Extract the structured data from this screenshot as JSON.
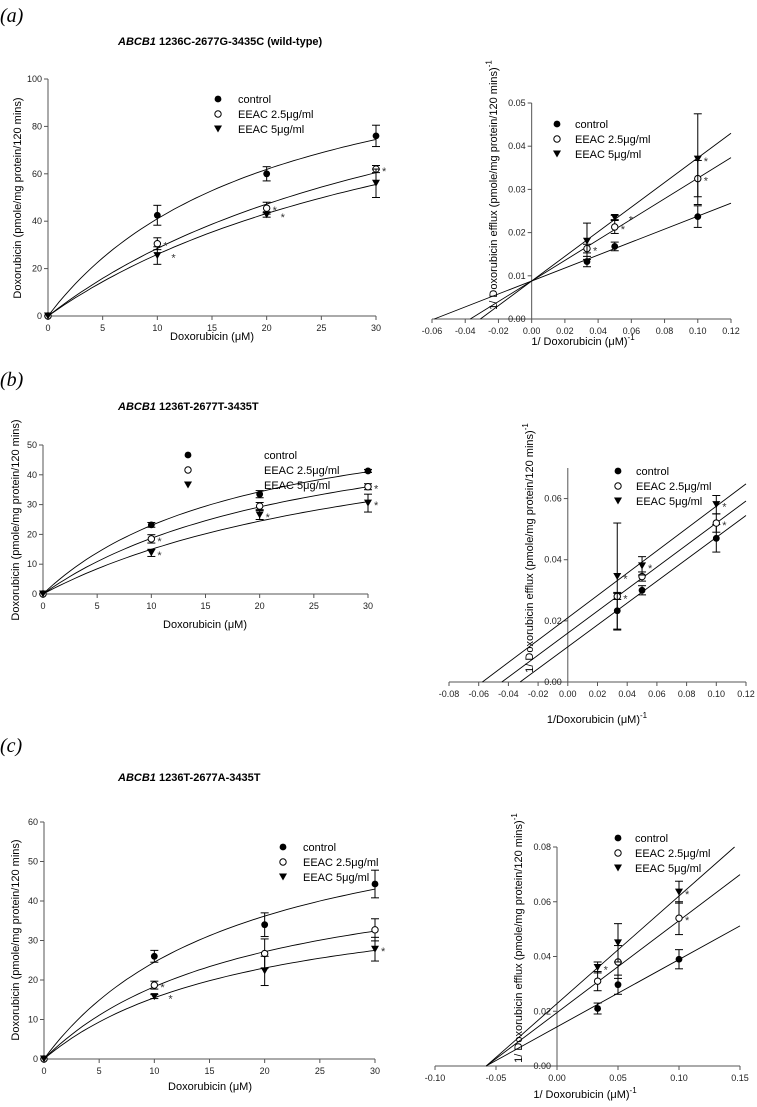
{
  "series_names": [
    "control",
    "EEAC 2.5μg/ml",
    "EEAC 5μg/ml"
  ],
  "marker_styles": [
    "filled-circle",
    "open-circle",
    "filled-triangle-down"
  ],
  "colors": {
    "ink": "#000000",
    "axis": "#555555"
  },
  "chart_data": [
    {
      "id": "a-left",
      "panel_label": "(a)",
      "title_gene": "ABCB1",
      "title_rest": " 1236C-2677G-3435C (wild-type)",
      "type": "scatter",
      "fit": "michaelis-menten",
      "xlabel": "Doxorubicin (μM)",
      "xlabel_sup": "",
      "ylabel": "Doxorubicin (pmole/mg protein/120 mins)",
      "ylabel_sup": "",
      "xlim": [
        0,
        30
      ],
      "ylim": [
        0,
        100
      ],
      "xticks": [
        "0",
        "5",
        "10",
        "15",
        "20",
        "25",
        "30"
      ],
      "yticks": [
        "0",
        "20",
        "40",
        "60",
        "80",
        "100"
      ],
      "series": [
        {
          "name": "control",
          "points": [
            [
              0,
              0,
              0,
              false
            ],
            [
              10,
              42.5,
              4.2,
              false
            ],
            [
              20,
              60,
              3,
              false
            ],
            [
              30,
              76,
              4.5,
              false
            ]
          ],
          "fit_params": {
            "Vmax": 125.9,
            "Km": 20.7
          }
        },
        {
          "name": "EEAC 2.5μg/ml",
          "points": [
            [
              0,
              0,
              0,
              false
            ],
            [
              10,
              30.5,
              2.5,
              true
            ],
            [
              20,
              45.5,
              2.5,
              true
            ],
            [
              30,
              62,
              1.5,
              true
            ]
          ],
          "fit_params": {
            "Vmax": 137.9,
            "Km": 38.4
          }
        },
        {
          "name": "EEAC 5μg/ml",
          "points": [
            [
              0,
              0,
              0,
              false
            ],
            [
              10,
              25.5,
              3.7,
              true
            ],
            [
              20,
              42.7,
              1,
              true
            ],
            [
              30,
              56,
              6,
              false
            ]
          ],
          "fit_params": {
            "Vmax": 128.2,
            "Km": 39.3
          }
        }
      ]
    },
    {
      "id": "a-right",
      "type": "scatter",
      "fit": "linear",
      "xlabel": "1/ Doxorubicin (μM)",
      "xlabel_sup": "-1",
      "ylabel": "1/ Doxorubicin efflux (pmole/mg protein/120 mins)",
      "ylabel_sup": "-1",
      "xlim": [
        -0.06,
        0.12
      ],
      "ylim": [
        0,
        0.05
      ],
      "xticks": [
        "-0.06",
        "-0.04",
        "-0.02",
        "0.00",
        "0.02",
        "0.04",
        "0.06",
        "0.08",
        "0.10",
        "0.12"
      ],
      "yticks": [
        "0.00",
        "0.01",
        "0.02",
        "0.03",
        "0.04",
        "0.05"
      ],
      "series": [
        {
          "name": "control",
          "points": [
            [
              0.0333,
              0.0133,
              0.0012,
              false
            ],
            [
              0.05,
              0.0168,
              0.001,
              false
            ],
            [
              0.1,
              0.0237,
              0.0025,
              false
            ]
          ],
          "fit_params": {
            "slope": 0.15,
            "intercept": 0.0088
          }
        },
        {
          "name": "EEAC 2.5μg/ml",
          "points": [
            [
              0.0333,
              0.0163,
              0.001,
              true
            ],
            [
              0.05,
              0.0213,
              0.0015,
              true
            ],
            [
              0.1,
              0.0325,
              0.0042,
              true
            ]
          ],
          "fit_params": {
            "slope": 0.238,
            "intercept": 0.0088
          }
        },
        {
          "name": "EEAC 5μg/ml",
          "points": [
            [
              0.0333,
              0.018,
              0.0042,
              false
            ],
            [
              0.05,
              0.0235,
              0.0005,
              true
            ],
            [
              0.1,
              0.037,
              0.0105,
              true
            ]
          ],
          "fit_params": {
            "slope": 0.285,
            "intercept": 0.0088
          }
        }
      ]
    },
    {
      "id": "b-left",
      "panel_label": "(b)",
      "title_gene": "ABCB1",
      "title_rest": " 1236T-2677T-3435T",
      "type": "scatter",
      "fit": "michaelis-menten",
      "xlabel": "Doxorubicin (μM)",
      "xlabel_sup": "",
      "ylabel": "Doxorubicin (pmole/mg protein/120 mins)",
      "ylabel_sup": "",
      "xlim": [
        0,
        30
      ],
      "ylim": [
        0,
        50
      ],
      "xticks": [
        "0",
        "5",
        "10",
        "15",
        "20",
        "25",
        "30"
      ],
      "yticks": [
        "0",
        "10",
        "20",
        "30",
        "40",
        "50"
      ],
      "series": [
        {
          "name": "control",
          "points": [
            [
              0,
              0,
              0,
              false
            ],
            [
              10,
              23.2,
              0.8,
              false
            ],
            [
              20,
              33.5,
              1.2,
              false
            ],
            [
              30,
              41.3,
              0.5,
              false
            ]
          ],
          "fit_params": {
            "Vmax": 67.4,
            "Km": 19.3
          }
        },
        {
          "name": "EEAC 2.5μg/ml",
          "points": [
            [
              0,
              0,
              0,
              false
            ],
            [
              10,
              18.5,
              1.4,
              true
            ],
            [
              20,
              29.5,
              1.2,
              false
            ],
            [
              30,
              36,
              1,
              true
            ]
          ],
          "fit_params": {
            "Vmax": 66.9,
            "Km": 25.8
          }
        },
        {
          "name": "EEAC 5μg/ml",
          "points": [
            [
              0,
              0,
              0,
              false
            ],
            [
              10,
              13.8,
              1.2,
              true
            ],
            [
              20,
              26.5,
              1.5,
              true
            ],
            [
              30,
              30.5,
              3,
              true
            ]
          ],
          "fit_params": {
            "Vmax": 66.4,
            "Km": 34.3
          }
        }
      ]
    },
    {
      "id": "b-right",
      "type": "scatter",
      "fit": "linear",
      "xlabel": "1/Doxorubicin (μM)",
      "xlabel_sup": "-1",
      "ylabel": "1/ Doxorubicin efflux (pmole/mg protein/120 mins)",
      "ylabel_sup": "-1",
      "xlim": [
        -0.08,
        0.12
      ],
      "ylim": [
        0,
        0.07
      ],
      "xticks": [
        "-0.08",
        "-0.06",
        "-0.04",
        "-0.02",
        "0.00",
        "0.02",
        "0.04",
        "0.06",
        "0.08",
        "0.10",
        "0.12"
      ],
      "yticks": [
        "0.00",
        "0.02",
        "0.04",
        "0.06"
      ],
      "series": [
        {
          "name": "control",
          "points": [
            [
              0.0333,
              0.0233,
              0.006,
              false
            ],
            [
              0.05,
              0.03,
              0.0015,
              false
            ],
            [
              0.1,
              0.047,
              0.0045,
              false
            ]
          ],
          "fit_params": {
            "slope": 0.358,
            "intercept": 0.0115
          }
        },
        {
          "name": "EEAC 2.5μg/ml",
          "points": [
            [
              0.0333,
              0.028,
              0.001,
              true
            ],
            [
              0.05,
              0.0345,
              0.0015,
              false
            ],
            [
              0.1,
              0.052,
              0.003,
              true
            ]
          ],
          "fit_params": {
            "slope": 0.36,
            "intercept": 0.016
          }
        },
        {
          "name": "EEAC 5μg/ml",
          "points": [
            [
              0.0333,
              0.0345,
              0.0175,
              true
            ],
            [
              0.05,
              0.038,
              0.003,
              true
            ],
            [
              0.1,
              0.058,
              0.003,
              true
            ]
          ],
          "fit_params": {
            "slope": 0.365,
            "intercept": 0.021
          }
        }
      ]
    },
    {
      "id": "c-left",
      "panel_label": "(c)",
      "title_gene": "ABCB1",
      "title_rest": " 1236T-2677A-3435T",
      "type": "scatter",
      "fit": "michaelis-menten",
      "xlabel": "Doxorubicin (μM)",
      "xlabel_sup": "",
      "ylabel": "Doxorubicin (pmole/mg protein/120 mins)",
      "ylabel_sup": "",
      "xlim": [
        0,
        30
      ],
      "ylim": [
        0,
        60
      ],
      "xticks": [
        "0",
        "5",
        "10",
        "15",
        "20",
        "25",
        "30"
      ],
      "yticks": [
        "0",
        "10",
        "20",
        "30",
        "40",
        "50",
        "60"
      ],
      "series": [
        {
          "name": "control",
          "points": [
            [
              0,
              0,
              0,
              false
            ],
            [
              10,
              26,
              1.5,
              false
            ],
            [
              20,
              34,
              3,
              false
            ],
            [
              30,
              44.3,
              3.5,
              false
            ]
          ],
          "fit_params": {
            "Vmax": 69.1,
            "Km": 18.2
          }
        },
        {
          "name": "EEAC 2.5μg/ml",
          "points": [
            [
              0,
              0,
              0,
              false
            ],
            [
              10,
              18.7,
              1,
              true
            ],
            [
              20,
              26.7,
              3.7,
              false
            ],
            [
              30,
              32.7,
              2.8,
              false
            ]
          ],
          "fit_params": {
            "Vmax": 52.7,
            "Km": 18.8
          }
        },
        {
          "name": "EEAC 5μg/ml",
          "points": [
            [
              0,
              0,
              0,
              false
            ],
            [
              10,
              15.8,
              0.5,
              true
            ],
            [
              20,
              22.3,
              3.7,
              false
            ],
            [
              30,
              27.8,
              3,
              true
            ]
          ],
          "fit_params": {
            "Vmax": 44.8,
            "Km": 18.9
          }
        }
      ]
    },
    {
      "id": "c-right",
      "type": "scatter",
      "fit": "linear",
      "xlabel": "1/ Doxorubicin (μM)",
      "xlabel_sup": "-1",
      "ylabel": "1/ Doxorubicin efflux (pmole/mg protein/120 mins)",
      "ylabel_sup": "-1",
      "xlim": [
        -0.1,
        0.15
      ],
      "ylim": [
        0,
        0.08
      ],
      "xticks": [
        "-0.10",
        "-0.05",
        "0.00",
        "0.05",
        "0.10",
        "0.15"
      ],
      "yticks": [
        "0.00",
        "0.02",
        "0.04",
        "0.06",
        "0.08"
      ],
      "series": [
        {
          "name": "control",
          "points": [
            [
              0.0333,
              0.021,
              0.002,
              false
            ],
            [
              0.05,
              0.0297,
              0.0035,
              false
            ],
            [
              0.1,
              0.039,
              0.0035,
              false
            ]
          ],
          "fit_params": {
            "slope": 0.246,
            "intercept": 0.0143
          }
        },
        {
          "name": "EEAC 2.5μg/ml",
          "points": [
            [
              0.0333,
              0.031,
              0.0035,
              false
            ],
            [
              0.05,
              0.038,
              0.006,
              false
            ],
            [
              0.1,
              0.054,
              0.006,
              true
            ]
          ],
          "fit_params": {
            "slope": 0.336,
            "intercept": 0.0195
          }
        },
        {
          "name": "EEAC 5μg/ml",
          "points": [
            [
              0.0333,
              0.036,
              0.002,
              true
            ],
            [
              0.05,
              0.045,
              0.007,
              false
            ],
            [
              0.1,
              0.0635,
              0.004,
              true
            ]
          ],
          "fit_params": {
            "slope": 0.393,
            "intercept": 0.0228
          }
        }
      ]
    }
  ]
}
